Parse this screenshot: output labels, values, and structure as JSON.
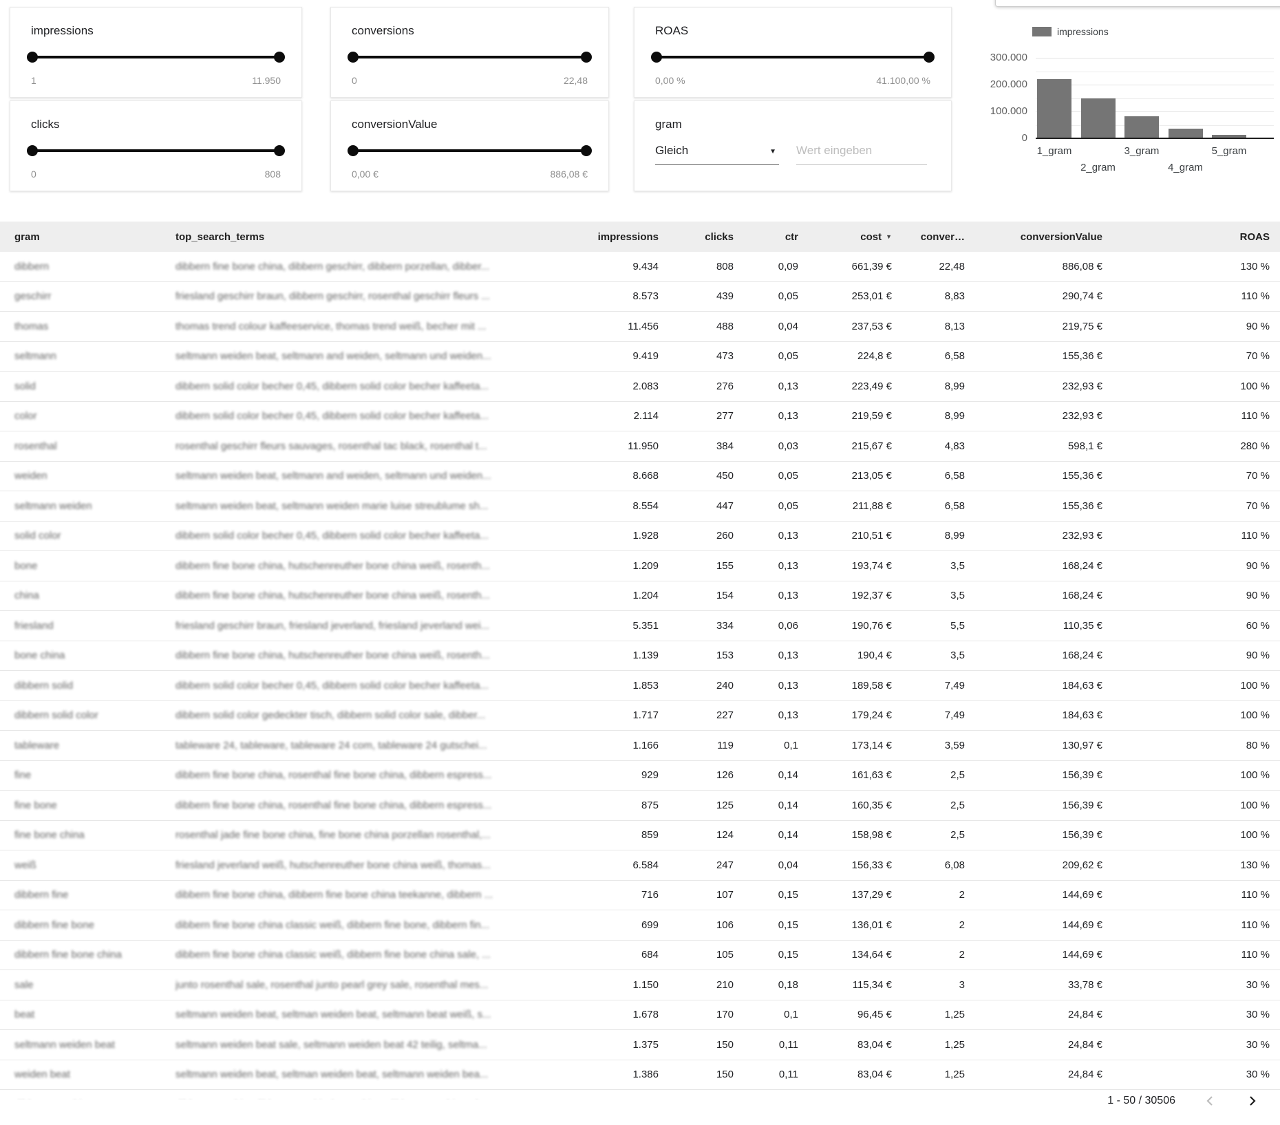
{
  "filters": {
    "impressions": {
      "label": "impressions",
      "min": "1",
      "max": "11.950"
    },
    "clicks": {
      "label": "clicks",
      "min": "0",
      "max": "808"
    },
    "conversions": {
      "label": "conversions",
      "min": "0",
      "max": "22,48"
    },
    "conversionValue": {
      "label": "conversionValue",
      "min": "0,00 €",
      "max": "886,08 €"
    },
    "roas": {
      "label": "ROAS",
      "min": "0,00 %",
      "max": "41.100,00 %"
    },
    "gram": {
      "label": "gram",
      "operator": "Gleich",
      "placeholder": "Wert eingeben"
    }
  },
  "chart_data": {
    "type": "bar",
    "legend": "impressions",
    "categories": [
      "1_gram",
      "2_gram",
      "3_gram",
      "4_gram",
      "5_gram"
    ],
    "values": [
      220000,
      148000,
      82000,
      36000,
      14000
    ],
    "ylim": [
      0,
      300000
    ],
    "y_ticks": [
      {
        "value": 300000,
        "label": "300.000"
      },
      {
        "value": 200000,
        "label": "200.000"
      },
      {
        "value": 100000,
        "label": "100.000"
      },
      {
        "value": 0,
        "label": "0"
      }
    ],
    "y_minor_step": 50000,
    "bar_color": "#757575",
    "grid": true,
    "legend_position": "top"
  },
  "table": {
    "columns": [
      "gram",
      "top_search_terms",
      "impressions",
      "clicks",
      "ctr",
      "cost",
      "conver…",
      "conversionValue",
      "ROAS"
    ],
    "sort_column_index": 5,
    "rows": [
      [
        "dibbern",
        "dibbern fine bone china, dibbern geschirr, dibbern porzellan, dibber...",
        "9.434",
        "808",
        "0,09",
        "661,39 €",
        "22,48",
        "886,08 €",
        "130 %"
      ],
      [
        "geschirr",
        "friesland geschirr braun, dibbern geschirr, rosenthal geschirr fleurs ...",
        "8.573",
        "439",
        "0,05",
        "253,01 €",
        "8,83",
        "290,74 €",
        "110 %"
      ],
      [
        "thomas",
        "thomas trend colour kaffeeservice, thomas trend weiß, becher mit ...",
        "11.456",
        "488",
        "0,04",
        "237,53 €",
        "8,13",
        "219,75 €",
        "90 %"
      ],
      [
        "seltmann",
        "seltmann weiden beat, seltmann and weiden, seltmann und weiden...",
        "9.419",
        "473",
        "0,05",
        "224,8 €",
        "6,58",
        "155,36 €",
        "70 %"
      ],
      [
        "solid",
        "dibbern solid color becher 0,45, dibbern solid color becher kaffeeta...",
        "2.083",
        "276",
        "0,13",
        "223,49 €",
        "8,99",
        "232,93 €",
        "100 %"
      ],
      [
        "color",
        "dibbern solid color becher 0,45, dibbern solid color becher kaffeeta...",
        "2.114",
        "277",
        "0,13",
        "219,59 €",
        "8,99",
        "232,93 €",
        "110 %"
      ],
      [
        "rosenthal",
        "rosenthal geschirr fleurs sauvages, rosenthal tac black, rosenthal t...",
        "11.950",
        "384",
        "0,03",
        "215,67 €",
        "4,83",
        "598,1 €",
        "280 %"
      ],
      [
        "weiden",
        "seltmann weiden beat, seltmann and weiden, seltmann und weiden...",
        "8.668",
        "450",
        "0,05",
        "213,05 €",
        "6,58",
        "155,36 €",
        "70 %"
      ],
      [
        "seltmann weiden",
        "seltmann weiden beat, seltmann weiden marie luise streublume sh...",
        "8.554",
        "447",
        "0,05",
        "211,88 €",
        "6,58",
        "155,36 €",
        "70 %"
      ],
      [
        "solid color",
        "dibbern solid color becher 0,45, dibbern solid color becher kaffeeta...",
        "1.928",
        "260",
        "0,13",
        "210,51 €",
        "8,99",
        "232,93 €",
        "110 %"
      ],
      [
        "bone",
        "dibbern fine bone china, hutschenreuther bone china weiß, rosenth...",
        "1.209",
        "155",
        "0,13",
        "193,74 €",
        "3,5",
        "168,24 €",
        "90 %"
      ],
      [
        "china",
        "dibbern fine bone china, hutschenreuther bone china weiß, rosenth...",
        "1.204",
        "154",
        "0,13",
        "192,37 €",
        "3,5",
        "168,24 €",
        "90 %"
      ],
      [
        "friesland",
        "friesland geschirr braun, friesland jeverland, friesland jeverland wei...",
        "5.351",
        "334",
        "0,06",
        "190,76 €",
        "5,5",
        "110,35 €",
        "60 %"
      ],
      [
        "bone china",
        "dibbern fine bone china, hutschenreuther bone china weiß, rosenth...",
        "1.139",
        "153",
        "0,13",
        "190,4 €",
        "3,5",
        "168,24 €",
        "90 %"
      ],
      [
        "dibbern solid",
        "dibbern solid color becher 0,45, dibbern solid color becher kaffeeta...",
        "1.853",
        "240",
        "0,13",
        "189,58 €",
        "7,49",
        "184,63 €",
        "100 %"
      ],
      [
        "dibbern solid color",
        "dibbern solid color gedeckter tisch, dibbern solid color sale, dibber...",
        "1.717",
        "227",
        "0,13",
        "179,24 €",
        "7,49",
        "184,63 €",
        "100 %"
      ],
      [
        "tableware",
        "tableware 24, tableware, tableware 24 com, tableware 24 gutschei...",
        "1.166",
        "119",
        "0,1",
        "173,14 €",
        "3,59",
        "130,97 €",
        "80 %"
      ],
      [
        "fine",
        "dibbern fine bone china, rosenthal fine bone china, dibbern espress...",
        "929",
        "126",
        "0,14",
        "161,63 €",
        "2,5",
        "156,39 €",
        "100 %"
      ],
      [
        "fine bone",
        "dibbern fine bone china, rosenthal fine bone china, dibbern espress...",
        "875",
        "125",
        "0,14",
        "160,35 €",
        "2,5",
        "156,39 €",
        "100 %"
      ],
      [
        "fine bone china",
        "rosenthal jade fine bone china, fine bone china porzellan rosenthal,...",
        "859",
        "124",
        "0,14",
        "158,98 €",
        "2,5",
        "156,39 €",
        "100 %"
      ],
      [
        "weiß",
        "friesland jeverland weiß, hutschenreuther bone china weiß, thomas...",
        "6.584",
        "247",
        "0,04",
        "156,33 €",
        "6,08",
        "209,62 €",
        "130 %"
      ],
      [
        "dibbern fine",
        "dibbern fine bone china, dibbern fine bone china teekanne, dibbern ...",
        "716",
        "107",
        "0,15",
        "137,29 €",
        "2",
        "144,69 €",
        "110 %"
      ],
      [
        "dibbern fine bone",
        "dibbern fine bone china classic weiß, dibbern fine bone, dibbern fin...",
        "699",
        "106",
        "0,15",
        "136,01 €",
        "2",
        "144,69 €",
        "110 %"
      ],
      [
        "dibbern fine bone china",
        "dibbern fine bone china classic weiß, dibbern fine bone china sale, ...",
        "684",
        "105",
        "0,15",
        "134,64 €",
        "2",
        "144,69 €",
        "110 %"
      ],
      [
        "sale",
        "junto rosenthal sale, rosenthal junto pearl grey sale, rosenthal mes...",
        "1.150",
        "210",
        "0,18",
        "115,34 €",
        "3",
        "33,78 €",
        "30 %"
      ],
      [
        "beat",
        "seltmann weiden beat, seltman weiden beat, seltmann beat weiß, s...",
        "1.678",
        "170",
        "0,1",
        "96,45 €",
        "1,25",
        "24,84 €",
        "30 %"
      ],
      [
        "seltmann weiden beat",
        "seltmann weiden beat sale, seltmann weiden beat 42 teilig, seltma...",
        "1.375",
        "150",
        "0,11",
        "83,04 €",
        "1,25",
        "24,84 €",
        "30 %"
      ],
      [
        "weiden beat",
        "seltmann weiden beat, seltman weiden beat, seltmann weiden bea...",
        "1.386",
        "150",
        "0,11",
        "83,04 €",
        "1,25",
        "24,84 €",
        "30 %"
      ],
      [
        "dibbern geschirr",
        "dibbern geschirr, dibbern geschirr bone china, dibbern geschirr sal...",
        "1.667",
        "107",
        "0,06",
        "60,97 €",
        "2,92",
        "101,25 €",
        "140 %"
      ]
    ]
  },
  "pagination": {
    "range": "1 - 50 / 30506"
  }
}
